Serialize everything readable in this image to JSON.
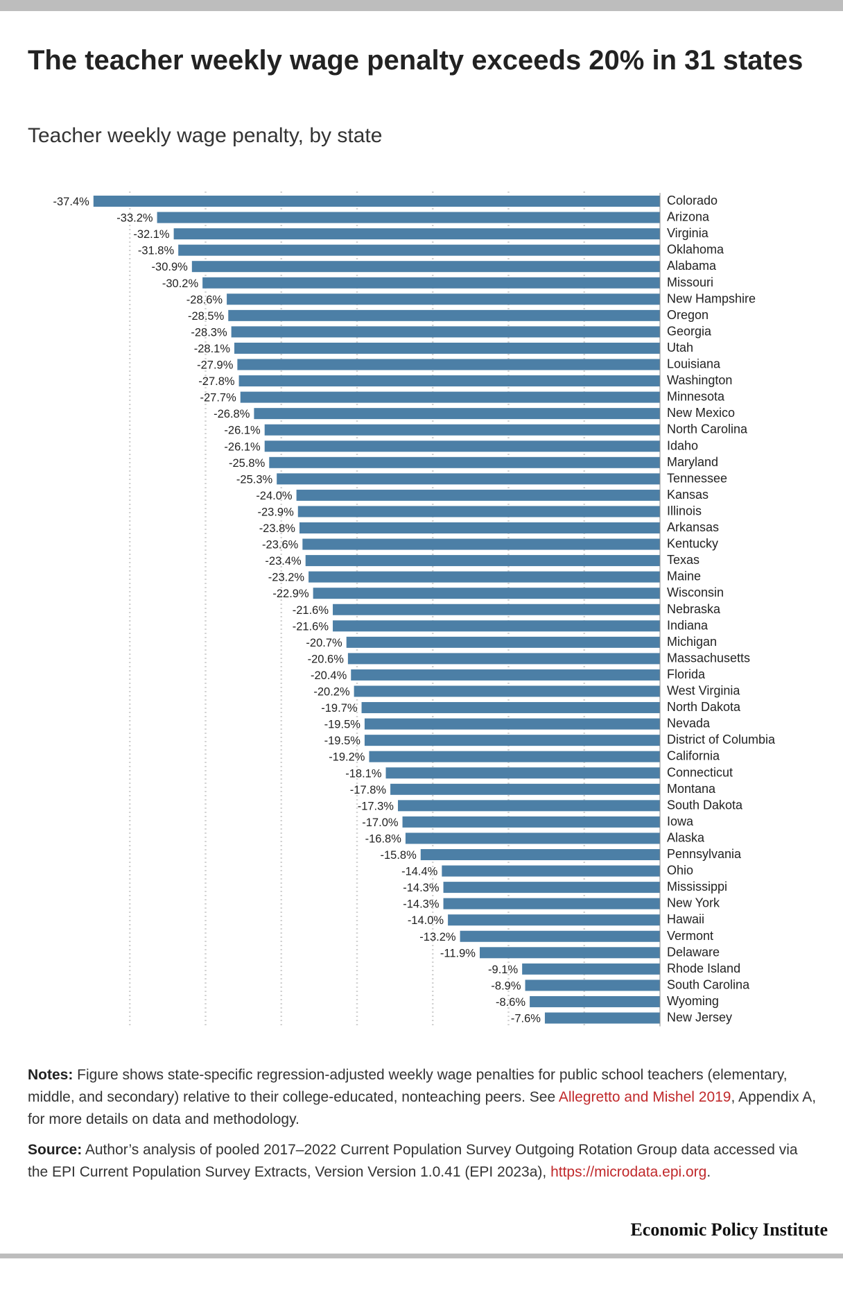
{
  "header": {
    "title": "The teacher weekly wage penalty exceeds 20% in 31 states",
    "subtitle": "Teacher weekly wage penalty, by state"
  },
  "chart_data": {
    "type": "bar",
    "orientation": "horizontal",
    "title": "The teacher weekly wage penalty exceeds 20% in 31 states",
    "subtitle": "Teacher weekly wage penalty, by state",
    "xlabel": "",
    "ylabel": "",
    "xlim": [
      -40,
      0
    ],
    "grid": true,
    "bar_color": "#4c7fa6",
    "categories": [
      "Colorado",
      "Arizona",
      "Virginia",
      "Oklahoma",
      "Alabama",
      "Missouri",
      "New Hampshire",
      "Oregon",
      "Georgia",
      "Utah",
      "Louisiana",
      "Washington",
      "Minnesota",
      "New Mexico",
      "North Carolina",
      "Idaho",
      "Maryland",
      "Tennessee",
      "Kansas",
      "Illinois",
      "Arkansas",
      "Kentucky",
      "Texas",
      "Maine",
      "Wisconsin",
      "Nebraska",
      "Indiana",
      "Michigan",
      "Massachusetts",
      "Florida",
      "West Virginia",
      "North Dakota",
      "Nevada",
      "District of Columbia",
      "California",
      "Connecticut",
      "Montana",
      "South Dakota",
      "Iowa",
      "Alaska",
      "Pennsylvania",
      "Ohio",
      "Mississippi",
      "New York",
      "Hawaii",
      "Vermont",
      "Delaware",
      "Rhode Island",
      "South Carolina",
      "Wyoming",
      "New Jersey"
    ],
    "values": [
      -37.4,
      -33.2,
      -32.1,
      -31.8,
      -30.9,
      -30.2,
      -28.6,
      -28.5,
      -28.3,
      -28.1,
      -27.9,
      -27.8,
      -27.7,
      -26.8,
      -26.1,
      -26.1,
      -25.8,
      -25.3,
      -24.0,
      -23.9,
      -23.8,
      -23.6,
      -23.4,
      -23.2,
      -22.9,
      -21.6,
      -21.6,
      -20.7,
      -20.6,
      -20.4,
      -20.2,
      -19.7,
      -19.5,
      -19.5,
      -19.2,
      -18.1,
      -17.8,
      -17.3,
      -17.0,
      -16.8,
      -15.8,
      -14.4,
      -14.3,
      -14.3,
      -14.0,
      -13.2,
      -11.9,
      -9.1,
      -8.9,
      -8.6,
      -7.6
    ],
    "value_labels": [
      "-37.4%",
      "-33.2%",
      "-32.1%",
      "-31.8%",
      "-30.9%",
      "-30.2%",
      "-28.6%",
      "-28.5%",
      "-28.3%",
      "-28.1%",
      "-27.9%",
      "-27.8%",
      "-27.7%",
      "-26.8%",
      "-26.1%",
      "-26.1%",
      "-25.8%",
      "-25.3%",
      "-24.0%",
      "-23.9%",
      "-23.8%",
      "-23.6%",
      "-23.4%",
      "-23.2%",
      "-22.9%",
      "-21.6%",
      "-21.6%",
      "-20.7%",
      "-20.6%",
      "-20.4%",
      "-20.2%",
      "-19.7%",
      "-19.5%",
      "-19.5%",
      "-19.2%",
      "-18.1%",
      "-17.8%",
      "-17.3%",
      "-17.0%",
      "-16.8%",
      "-15.8%",
      "-14.4%",
      "-14.3%",
      "-14.3%",
      "-14.0%",
      "-13.2%",
      "-11.9%",
      "-9.1%",
      "-8.9%",
      "-8.6%",
      "-7.6%"
    ]
  },
  "notes": {
    "label": "Notes:",
    "text_before": " Figure shows state-specific regression-adjusted weekly wage penalties for public school teachers (elementary, middle, and secondary) relative to their college-educated, nonteaching peers. See ",
    "link": "Allegretto and Mishel 2019",
    "text_after": ", Appendix A, for more details on data and methodology."
  },
  "source": {
    "label": "Source:",
    "text": " Author’s analysis of pooled 2017–2022 Current Population Survey Outgoing Rotation Group data accessed via the EPI Current Population Survey Extracts, Version Version 1.0.41 (EPI 2023a), ",
    "link": "https://microdata.epi.org",
    "text_after": "."
  },
  "footer": {
    "brand": "Economic Policy Institute"
  }
}
